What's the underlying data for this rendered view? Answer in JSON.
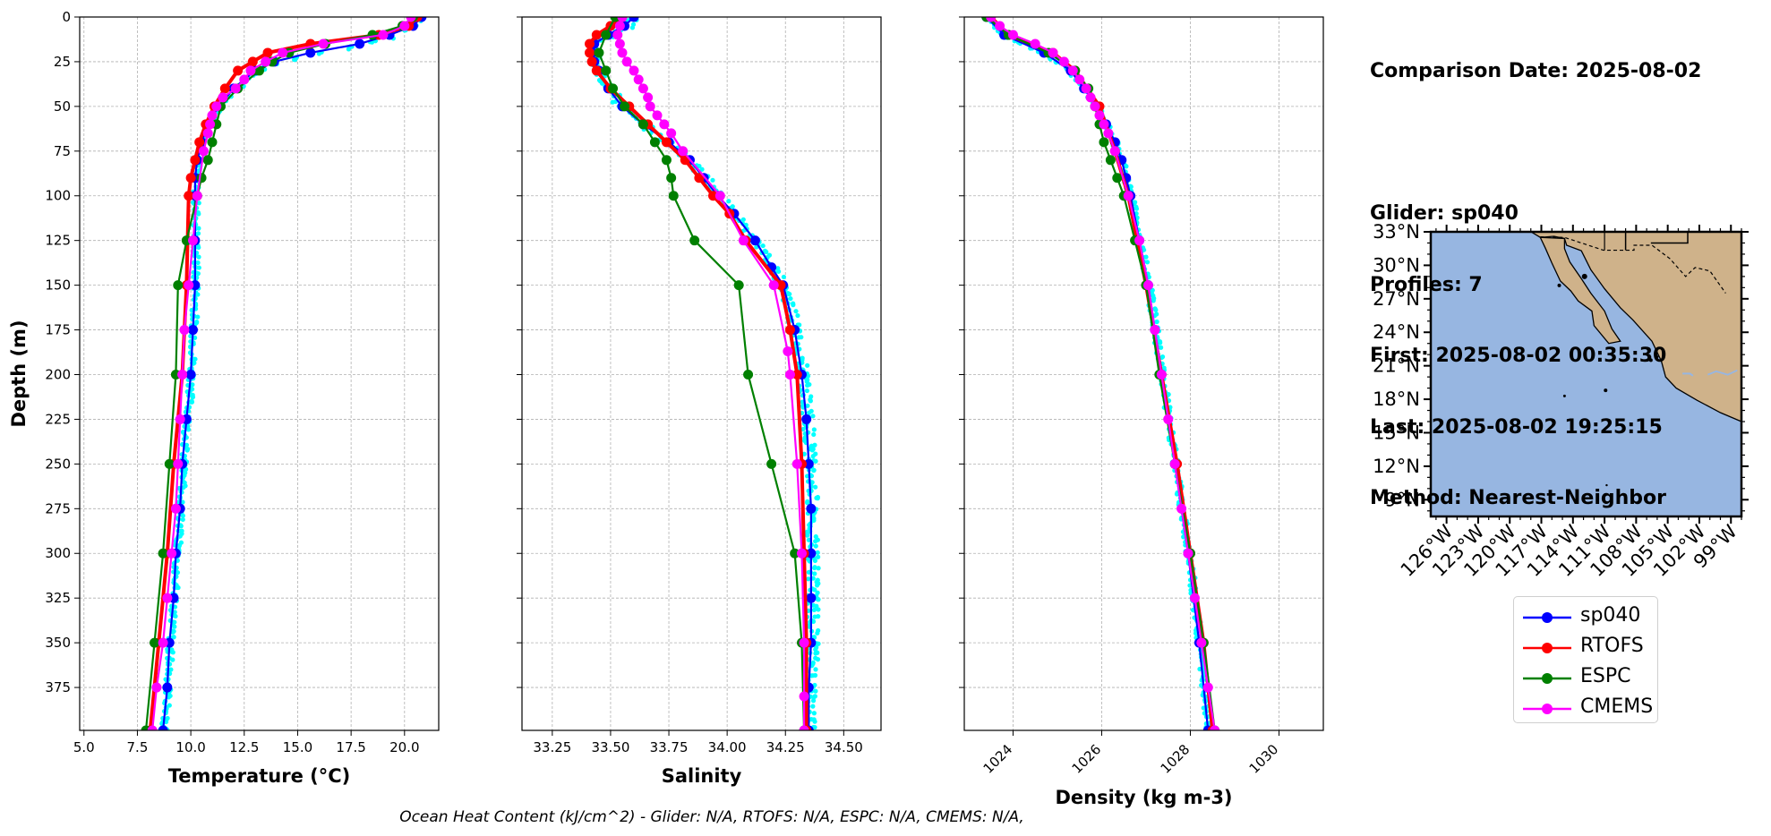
{
  "info": {
    "comparison_date": "Comparison Date: 2025-08-02",
    "glider": "Glider: sp040",
    "profiles": "Profiles: 7",
    "first": "First: 2025-08-02 00:35:30",
    "last": "Last: 2025-08-02 19:25:15",
    "method": "Method: Nearest-Neighbor"
  },
  "footer": "Ocean Heat Content (kJ/cm^2) - Glider: N/A,  RTOFS: N/A,  ESPC: N/A,  CMEMS: N/A,",
  "legend": [
    {
      "name": "sp040",
      "color": "#0000ff"
    },
    {
      "name": "RTOFS",
      "color": "#ff0000"
    },
    {
      "name": "ESPC",
      "color": "#008000"
    },
    {
      "name": "CMEMS",
      "color": "#ff00ff"
    }
  ],
  "colors": {
    "glider_raw": "#00ffff",
    "sp040": "#0000ff",
    "RTOFS": "#ff0000",
    "ESPC": "#008000",
    "CMEMS": "#ff00ff",
    "ocean": "#97b6e1",
    "land": "#cfb28a",
    "grid": "#b0b0b0"
  },
  "chart_data": [
    {
      "type": "line",
      "xlabel": "Temperature (°C)",
      "ylabel": "Depth (m)",
      "xlim": [
        4.8,
        21.6
      ],
      "ylim": [
        399,
        0
      ],
      "xticks": [
        5.0,
        7.5,
        10.0,
        12.5,
        15.0,
        17.5,
        20.0
      ],
      "xtick_labels": [
        "5.0",
        "7.5",
        "10.0",
        "12.5",
        "15.0",
        "17.5",
        "20.0"
      ],
      "yticks": [
        0,
        25,
        50,
        75,
        100,
        125,
        150,
        175,
        200,
        225,
        250,
        275,
        300,
        325,
        350,
        375
      ],
      "grid": true,
      "series": [
        {
          "name": "sp040",
          "depth": [
            0,
            5,
            10,
            15,
            20,
            25,
            30,
            40,
            50,
            60,
            70,
            80,
            90,
            100,
            125,
            150,
            175,
            200,
            225,
            250,
            275,
            300,
            325,
            350,
            375,
            399
          ],
          "values": [
            20.8,
            20.4,
            19.3,
            17.9,
            15.6,
            13.9,
            13.0,
            12.0,
            11.3,
            10.8,
            10.5,
            10.3,
            10.2,
            10.2,
            10.2,
            10.2,
            10.1,
            10.0,
            9.8,
            9.6,
            9.5,
            9.3,
            9.2,
            9.0,
            8.9,
            8.7
          ]
        },
        {
          "name": "RTOFS",
          "depth": [
            0,
            5,
            10,
            15,
            20,
            25,
            30,
            40,
            50,
            60,
            70,
            80,
            90,
            100,
            150,
            200,
            250,
            300,
            350,
            399
          ],
          "values": [
            20.6,
            20.2,
            18.8,
            15.6,
            13.6,
            12.9,
            12.2,
            11.6,
            11.1,
            10.7,
            10.4,
            10.2,
            10.0,
            9.9,
            9.8,
            9.6,
            9.2,
            8.9,
            8.5,
            8.1
          ]
        },
        {
          "name": "ESPC",
          "depth": [
            0,
            5,
            10,
            15,
            20,
            25,
            30,
            40,
            50,
            60,
            70,
            80,
            90,
            100,
            125,
            150,
            200,
            250,
            300,
            350,
            399
          ],
          "values": [
            20.4,
            19.9,
            18.5,
            16.3,
            14.6,
            13.8,
            13.2,
            12.2,
            11.4,
            11.2,
            11.0,
            10.8,
            10.5,
            10.3,
            9.8,
            9.4,
            9.3,
            9.0,
            8.7,
            8.3,
            7.9
          ]
        },
        {
          "name": "CMEMS",
          "depth": [
            0,
            5,
            10,
            15,
            20,
            25,
            30,
            35,
            40,
            45,
            50,
            55,
            60,
            65,
            75,
            100,
            125,
            150,
            175,
            200,
            225,
            250,
            275,
            300,
            325,
            350,
            375,
            399
          ],
          "values": [
            20.3,
            20.0,
            19.0,
            16.2,
            14.3,
            13.5,
            12.8,
            12.5,
            12.1,
            11.5,
            11.2,
            11.0,
            10.9,
            10.8,
            10.6,
            10.3,
            10.1,
            9.9,
            9.7,
            9.6,
            9.5,
            9.4,
            9.3,
            9.1,
            8.9,
            8.7,
            8.4,
            8.2
          ]
        }
      ]
    },
    {
      "type": "line",
      "xlabel": "Salinity",
      "ylabel": "",
      "xlim": [
        33.12,
        34.66
      ],
      "ylim": [
        399,
        0
      ],
      "xticks": [
        33.25,
        33.5,
        33.75,
        34.0,
        34.25,
        34.5
      ],
      "xtick_labels": [
        "33.25",
        "33.50",
        "33.75",
        "34.00",
        "34.25",
        "34.50"
      ],
      "yticks": [
        0,
        25,
        50,
        75,
        100,
        125,
        150,
        175,
        200,
        225,
        250,
        275,
        300,
        325,
        350,
        375
      ],
      "grid": true,
      "series": [
        {
          "name": "sp040",
          "depth": [
            0,
            5,
            10,
            15,
            20,
            25,
            30,
            40,
            50,
            60,
            70,
            80,
            90,
            100,
            110,
            125,
            140,
            150,
            175,
            200,
            225,
            250,
            275,
            300,
            325,
            350,
            375,
            399
          ],
          "values": [
            33.6,
            33.56,
            33.49,
            33.43,
            33.42,
            33.43,
            33.45,
            33.49,
            33.55,
            33.64,
            33.75,
            33.84,
            33.9,
            33.96,
            34.03,
            34.12,
            34.19,
            34.24,
            34.29,
            34.32,
            34.34,
            34.35,
            34.36,
            34.36,
            34.36,
            34.36,
            34.35,
            34.35
          ]
        },
        {
          "name": "RTOFS",
          "depth": [
            0,
            5,
            10,
            15,
            20,
            25,
            30,
            40,
            50,
            60,
            70,
            80,
            90,
            100,
            110,
            125,
            150,
            175,
            200,
            250,
            300,
            350,
            399
          ],
          "values": [
            33.55,
            33.5,
            33.44,
            33.41,
            33.41,
            33.42,
            33.44,
            33.5,
            33.58,
            33.66,
            33.74,
            33.82,
            33.88,
            33.94,
            34.01,
            34.08,
            34.23,
            34.27,
            34.3,
            34.32,
            34.33,
            34.34,
            34.34
          ]
        },
        {
          "name": "ESPC",
          "depth": [
            0,
            10,
            20,
            30,
            40,
            50,
            60,
            70,
            80,
            90,
            100,
            125,
            150,
            200,
            250,
            300,
            350,
            399
          ],
          "values": [
            33.52,
            33.48,
            33.45,
            33.48,
            33.51,
            33.56,
            33.64,
            33.69,
            33.74,
            33.76,
            33.77,
            33.86,
            34.05,
            34.09,
            34.19,
            34.29,
            34.32,
            34.33
          ]
        },
        {
          "name": "CMEMS",
          "depth": [
            0,
            5,
            10,
            15,
            20,
            25,
            30,
            35,
            40,
            45,
            50,
            55,
            60,
            65,
            75,
            100,
            125,
            150,
            187,
            200,
            250,
            300,
            350,
            380,
            399
          ],
          "values": [
            33.55,
            33.54,
            33.53,
            33.54,
            33.55,
            33.57,
            33.6,
            33.62,
            33.64,
            33.66,
            33.67,
            33.7,
            33.73,
            33.76,
            33.81,
            33.97,
            34.07,
            34.2,
            34.26,
            34.27,
            34.3,
            34.32,
            34.33,
            34.33,
            34.33
          ]
        }
      ]
    },
    {
      "type": "line",
      "xlabel": "Density (kg m-3)",
      "ylabel": "",
      "xlim": [
        1022.9,
        1031.0
      ],
      "ylim": [
        399,
        0
      ],
      "xticks": [
        1024,
        1026,
        1028,
        1030
      ],
      "xtick_labels": [
        "1024",
        "1026",
        "1028",
        "1030"
      ],
      "yticks": [
        0,
        25,
        50,
        75,
        100,
        125,
        150,
        175,
        200,
        225,
        250,
        275,
        300,
        325,
        350,
        375
      ],
      "grid": true,
      "series": [
        {
          "name": "sp040",
          "depth": [
            0,
            10,
            20,
            30,
            40,
            50,
            60,
            70,
            80,
            90,
            100,
            125,
            150,
            175,
            200,
            250,
            300,
            350,
            399
          ],
          "values": [
            1023.4,
            1023.8,
            1024.7,
            1025.3,
            1025.6,
            1025.9,
            1026.1,
            1026.3,
            1026.45,
            1026.55,
            1026.65,
            1026.85,
            1027.05,
            1027.2,
            1027.35,
            1027.65,
            1027.95,
            1028.2,
            1028.4
          ]
        },
        {
          "name": "RTOFS",
          "depth": [
            0,
            10,
            20,
            30,
            50,
            75,
            100,
            150,
            200,
            250,
            300,
            350,
            399
          ],
          "values": [
            1023.5,
            1023.9,
            1024.9,
            1025.4,
            1025.95,
            1026.3,
            1026.6,
            1027.0,
            1027.35,
            1027.7,
            1028.0,
            1028.3,
            1028.5
          ]
        },
        {
          "name": "ESPC",
          "depth": [
            0,
            10,
            20,
            30,
            40,
            50,
            60,
            70,
            80,
            90,
            100,
            125,
            150,
            200,
            250,
            300,
            350,
            399
          ],
          "values": [
            1023.4,
            1023.9,
            1024.8,
            1025.4,
            1025.7,
            1025.85,
            1025.95,
            1026.05,
            1026.2,
            1026.35,
            1026.5,
            1026.75,
            1027.0,
            1027.3,
            1027.65,
            1028.0,
            1028.3,
            1028.55
          ]
        },
        {
          "name": "CMEMS",
          "depth": [
            0,
            5,
            10,
            15,
            20,
            25,
            30,
            35,
            40,
            45,
            50,
            55,
            60,
            65,
            75,
            100,
            125,
            150,
            175,
            200,
            225,
            250,
            275,
            300,
            325,
            350,
            375,
            399
          ],
          "values": [
            1023.5,
            1023.7,
            1024.0,
            1024.5,
            1024.9,
            1025.15,
            1025.35,
            1025.5,
            1025.65,
            1025.75,
            1025.85,
            1025.95,
            1026.05,
            1026.15,
            1026.3,
            1026.6,
            1026.85,
            1027.05,
            1027.2,
            1027.35,
            1027.5,
            1027.65,
            1027.8,
            1027.95,
            1028.1,
            1028.25,
            1028.4,
            1028.55
          ]
        }
      ]
    }
  ],
  "map": {
    "lon_range": [
      -127.5,
      -98.0
    ],
    "lat_range": [
      7.5,
      33.0
    ],
    "lat_ticks": [
      33,
      30,
      27,
      24,
      21,
      18,
      15,
      12,
      9
    ],
    "lat_labels": [
      "33°N",
      "30°N",
      "27°N",
      "24°N",
      "21°N",
      "18°N",
      "15°N",
      "12°N",
      "9°N"
    ],
    "lon_ticks": [
      -126,
      -123,
      -120,
      -117,
      -114,
      -111,
      -108,
      -105,
      -102,
      -99
    ],
    "lon_labels": [
      "126°W",
      "123°W",
      "120°W",
      "117°W",
      "114°W",
      "111°W",
      "108°W",
      "105°W",
      "102°W",
      "99°W"
    ]
  }
}
